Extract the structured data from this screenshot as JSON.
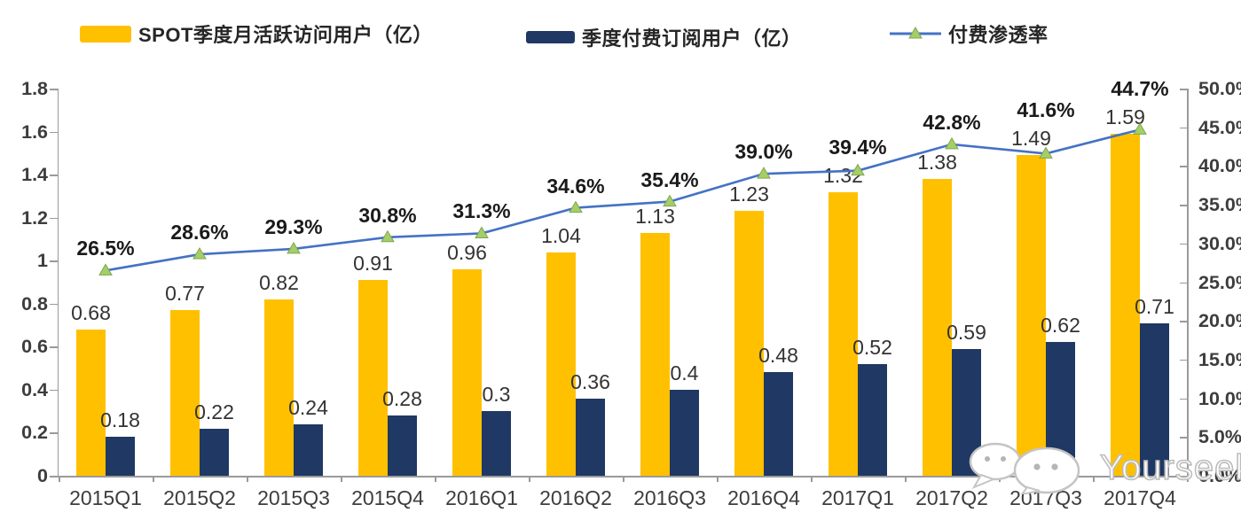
{
  "colors": {
    "mau_bar": "#FFC000",
    "subs_bar": "#1F3864",
    "line": "#4472C4",
    "marker_fill": "#A6CE67",
    "marker_stroke": "#7FA650",
    "axis": "#9a9a9a",
    "label_text": "#333333"
  },
  "legend": {
    "items": [
      {
        "label": "SPOT季度月活跃访问用户（亿）",
        "color": "#FFC000",
        "type": "bar"
      },
      {
        "label": "季度付费订阅用户（亿）",
        "color": "#1F3864",
        "type": "bar"
      },
      {
        "label": "付费渗透率",
        "color": "#4472C4",
        "marker_color": "#A6CE67",
        "type": "line"
      }
    ]
  },
  "chart_data": {
    "type": "bar+line combo",
    "categories": [
      "2015Q1",
      "2015Q2",
      "2015Q3",
      "2015Q4",
      "2016Q1",
      "2016Q2",
      "2016Q3",
      "2016Q4",
      "2017Q1",
      "2017Q2",
      "2017Q3",
      "2017Q4"
    ],
    "series": [
      {
        "name": "SPOT季度月活跃访问用户（亿）",
        "type": "bar",
        "axis": "left",
        "color": "#FFC000",
        "values": [
          0.68,
          0.77,
          0.82,
          0.91,
          0.96,
          1.04,
          1.13,
          1.23,
          1.32,
          1.38,
          1.49,
          1.59
        ],
        "labels": [
          "0.68",
          "0.77",
          "0.82",
          "0.91",
          "0.96",
          "1.04",
          "1.13",
          "1.23",
          "1.32",
          "1.38",
          "1.49",
          "1.59"
        ]
      },
      {
        "name": "季度付费订阅用户（亿）",
        "type": "bar",
        "axis": "left",
        "color": "#1F3864",
        "values": [
          0.18,
          0.22,
          0.24,
          0.28,
          0.3,
          0.36,
          0.4,
          0.48,
          0.52,
          0.59,
          0.62,
          0.71
        ],
        "labels": [
          "0.18",
          "0.22",
          "0.24",
          "0.28",
          "0.3",
          "0.36",
          "0.4",
          "0.48",
          "0.52",
          "0.59",
          "0.62",
          "0.71"
        ]
      },
      {
        "name": "付费渗透率",
        "type": "line",
        "axis": "right",
        "color": "#4472C4",
        "values": [
          26.5,
          28.6,
          29.3,
          30.8,
          31.3,
          34.6,
          35.4,
          39.0,
          39.4,
          42.8,
          41.6,
          44.7
        ],
        "labels": [
          "26.5%",
          "28.6%",
          "29.3%",
          "30.8%",
          "31.3%",
          "34.6%",
          "35.4%",
          "39.0%",
          "39.4%",
          "42.8%",
          "41.6%",
          "44.7%"
        ]
      }
    ],
    "left_axis": {
      "min": 0,
      "max": 1.8,
      "ticks": [
        {
          "value": 0,
          "label": "0"
        },
        {
          "value": 0.2,
          "label": "0.2"
        },
        {
          "value": 0.4,
          "label": "0.4"
        },
        {
          "value": 0.6,
          "label": "0.6"
        },
        {
          "value": 0.8,
          "label": "0.8"
        },
        {
          "value": 1,
          "label": "1"
        },
        {
          "value": 1.2,
          "label": "1.2"
        },
        {
          "value": 1.4,
          "label": "1.4"
        },
        {
          "value": 1.6,
          "label": "1.6"
        },
        {
          "value": 1.8,
          "label": "1.8"
        }
      ]
    },
    "right_axis": {
      "min": 0,
      "max": 50,
      "ticks": [
        {
          "value": 0,
          "label": "0.0%"
        },
        {
          "value": 5,
          "label": "5.0%"
        },
        {
          "value": 10,
          "label": "10.0%"
        },
        {
          "value": 15,
          "label": "15.0%"
        },
        {
          "value": 20,
          "label": "20.0%"
        },
        {
          "value": 25,
          "label": "25.0%"
        },
        {
          "value": 30,
          "label": "30.0%"
        },
        {
          "value": 35,
          "label": "35.0%"
        },
        {
          "value": 40,
          "label": "40.0%"
        },
        {
          "value": 45,
          "label": "45.0%"
        },
        {
          "value": 50,
          "label": "50.0%"
        }
      ]
    },
    "grid": false,
    "legend_position": "top"
  },
  "watermark": {
    "text": "Yourseeker",
    "icon": "chat-bubbles-icon"
  }
}
